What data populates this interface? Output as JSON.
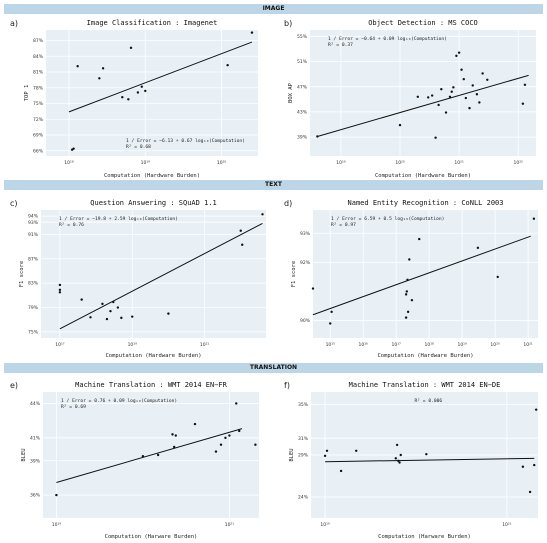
{
  "sections": [
    "IMAGE",
    "TEXT",
    "TRANSLATION"
  ],
  "colors": {
    "band": "#bcd6e8",
    "plot_bg": "#e8f0f6",
    "grid": "#ffffff",
    "line": "#111111",
    "point": "#111111"
  },
  "chart_data": [
    {
      "panel": "a)",
      "type": "scatter",
      "title": "Image Classification : Imagenet",
      "xlabel": "Computation (Hardware Burden)",
      "ylabel": "TOP 1",
      "x_scale": "log",
      "xlim": [
        5e+17,
        3e+20
      ],
      "ylim": [
        65,
        89
      ],
      "x_ticks": [
        1e+18,
        1e+19,
        1e+20
      ],
      "x_tick_labels": [
        "10¹⁸",
        "10¹⁹",
        "10²⁰"
      ],
      "y_ticks": [
        66,
        69,
        72,
        75,
        78,
        81,
        84,
        87
      ],
      "y_tick_labels": [
        "66%",
        "69%",
        "72%",
        "75%",
        "78%",
        "81%",
        "84%",
        "87%"
      ],
      "annotation": [
        "1 / Error = −6.13 + 0.67 log₁₀(Computation)",
        "R² = 0.68"
      ],
      "fit": {
        "x": [
          1e+18,
          2.5e+20
        ],
        "y": [
          73.4,
          86.7
        ]
      },
      "points": {
        "x": [
          1.1e+18,
          1.15e+18,
          1.3e+18,
          2.5e+18,
          2.8e+18,
          5e+18,
          6e+18,
          6.5e+18,
          8e+18,
          9e+18,
          1e+19,
          1.2e+20,
          2.5e+20
        ],
        "y": [
          66.2,
          66.4,
          82.1,
          79.8,
          81.7,
          76.2,
          75.8,
          85.6,
          77.1,
          78.2,
          77.4,
          82.3,
          88.5
        ]
      }
    },
    {
      "panel": "b)",
      "type": "scatter",
      "title": "Object Detection : MS COCO",
      "xlabel": "Computation (Hardware Burden)",
      "ylabel": "BOX AP",
      "x_scale": "log",
      "xlim": [
        3e+18,
        2e+22
      ],
      "ylim": [
        36,
        56
      ],
      "x_ticks": [
        1e+19,
        1e+20,
        1e+21,
        1e+22
      ],
      "x_tick_labels": [
        "10¹⁹",
        "10²⁰",
        "10²¹",
        "10²²"
      ],
      "y_ticks": [
        39,
        43,
        47,
        51,
        55
      ],
      "y_tick_labels": [
        "39%",
        "43%",
        "47%",
        "51%",
        "55%"
      ],
      "annotation": [
        "1 / Error = −0.64 + 0.09 log₁₀(Computation)",
        "R² = 0.37"
      ],
      "fit": {
        "x": [
          4e+18,
          1.5e+22
        ],
        "y": [
          39.1,
          48.8
        ]
      },
      "points": {
        "x": [
          4e+18,
          1e+20,
          2e+20,
          3e+20,
          3.5e+20,
          4e+20,
          4.5e+20,
          5e+20,
          6e+20,
          7e+20,
          7.5e+20,
          8e+20,
          9e+20,
          1e+21,
          1.1e+21,
          1.2e+21,
          1.3e+21,
          1.5e+21,
          1.7e+21,
          2e+21,
          2.2e+21,
          2.5e+21,
          3e+21,
          1.2e+22,
          1.3e+22
        ],
        "y": [
          39.1,
          40.9,
          45.4,
          45.3,
          45.6,
          38.9,
          44.1,
          46.6,
          42.9,
          45.4,
          46.2,
          46.9,
          51.9,
          52.4,
          49.7,
          48.2,
          45.2,
          43.6,
          47.2,
          45.8,
          44.5,
          49.1,
          48.1,
          44.3,
          47.3
        ]
      }
    },
    {
      "panel": "c)",
      "type": "scatter",
      "title": "Question Answering : SQuAD 1.1",
      "xlabel": "Computation (Hardware Burden)",
      "ylabel": "F1 score",
      "x_scale": "log",
      "xlim": [
        3e+16,
        5e+22
      ],
      "ylim": [
        74,
        95
      ],
      "x_ticks": [
        1e+17,
        1e+19,
        1e+21
      ],
      "x_tick_labels": [
        "10¹⁷",
        "10¹⁹",
        "10²¹"
      ],
      "y_ticks": [
        75,
        79,
        83,
        87,
        91,
        93,
        94
      ],
      "y_tick_labels": [
        "75%",
        "79%",
        "83%",
        "87%",
        "91%",
        "93%",
        "94%"
      ],
      "annotation": [
        "1 / Error = −19.8 + 2.59 log₁₀(Computation)",
        "R² = 0.76"
      ],
      "fit": {
        "x": [
          1e+17,
          4e+22
        ],
        "y": [
          75.5,
          92.8
        ]
      },
      "points": {
        "x": [
          1e+17,
          1e+17,
          1e+17,
          4e+17,
          7e+17,
          1.5e+18,
          2e+18,
          2.5e+18,
          3e+18,
          4e+18,
          5e+18,
          1e+19,
          1e+20,
          1e+22,
          1.1e+22,
          4e+22
        ],
        "y": [
          81.5,
          81.9,
          82.7,
          80.3,
          77.4,
          79.6,
          77.1,
          78.4,
          79.9,
          79.0,
          77.3,
          77.5,
          78.0,
          91.6,
          89.3,
          94.3
        ]
      }
    },
    {
      "panel": "d)",
      "type": "scatter",
      "title": "Named Entity Recognition : CoNLL 2003",
      "xlabel": "Computation (Hardware Burden)",
      "ylabel": "F1 score",
      "x_scale": "log",
      "xlim": [
        300000000000000.0,
        2e+21
      ],
      "ylim": [
        89.4,
        93.8
      ],
      "x_ticks": [
        1000000000000000.0,
        1e+16,
        1e+17,
        1e+18,
        1e+19,
        1e+20,
        1e+21
      ],
      "x_tick_labels": [
        "10¹⁵",
        "10¹⁶",
        "10¹⁷",
        "10¹⁸",
        "10¹⁹",
        "10²⁰",
        "10²¹"
      ],
      "y_ticks": [
        90,
        92,
        93
      ],
      "y_tick_labels": [
        "90%",
        "92%",
        "93%"
      ],
      "annotation": [
        "1 / Error = 6.59 + 0.5 log₁₀(Computation)",
        "R² = 0.97"
      ],
      "fit": {
        "x": [
          300000000000000.0,
          1.2e+21
        ],
        "y": [
          90.2,
          92.9
        ]
      },
      "points": {
        "x": [
          300000000000000.0,
          1000000000000000.0,
          1100000000000000.0,
          2e+17,
          2e+17,
          2.1e+17,
          2.2e+17,
          2.3e+17,
          2.5e+17,
          3e+17,
          5e+17,
          3e+19,
          1.2e+20,
          1.5e+21
        ],
        "y": [
          91.1,
          89.9,
          90.3,
          90.1,
          90.9,
          91.0,
          91.4,
          90.3,
          92.1,
          90.7,
          92.8,
          92.5,
          91.5,
          93.5
        ]
      }
    },
    {
      "panel": "e)",
      "type": "scatter",
      "title": "Machine Translation : WMT 2014 EN−FR",
      "xlabel": "Computation (Harware Burden)",
      "ylabel": "BLEU",
      "x_scale": "log",
      "xlim": [
        7e+18,
        2.2e+21
      ],
      "ylim": [
        34,
        45
      ],
      "x_ticks": [
        1e+19,
        1e+21
      ],
      "x_tick_labels": [
        "10¹⁹",
        "10²¹"
      ],
      "y_ticks": [
        36,
        39,
        41,
        44
      ],
      "y_tick_labels": [
        "36%",
        "39%",
        "41%",
        "44%"
      ],
      "annotation": [
        "1 / Error = 0.76 + 0.09 log₁₀(Computation)",
        "R² = 0.69"
      ],
      "fit": {
        "x": [
          1e+19,
          1.4e+21
        ],
        "y": [
          37.1,
          41.8
        ]
      },
      "points": {
        "x": [
          1e+19,
          1e+20,
          1.5e+20,
          2.2e+20,
          2.3e+20,
          2.4e+20,
          4e+20,
          7e+20,
          8e+20,
          9e+20,
          1e+21,
          1.2e+21,
          1.3e+21,
          2e+21
        ],
        "y": [
          36.0,
          39.4,
          39.5,
          41.3,
          40.2,
          41.2,
          42.2,
          39.8,
          40.4,
          41.0,
          41.2,
          44.0,
          41.6,
          40.4
        ]
      }
    },
    {
      "panel": "f)",
      "type": "scatter",
      "title": "Machine Translation : WMT 2014 EN−DE",
      "xlabel": "Computation (Harware Burden)",
      "ylabel": "BLEU",
      "x_scale": "log",
      "xlim": [
        7e+18,
        2.2e+21
      ],
      "ylim": [
        21.5,
        36.5
      ],
      "x_ticks": [
        1e+19,
        1e+21
      ],
      "x_tick_labels": [
        "10¹⁹",
        "10²¹"
      ],
      "y_ticks": [
        24,
        29,
        31,
        35
      ],
      "y_tick_labels": [
        "24%",
        "29%",
        "31%",
        "35%"
      ],
      "annotation": [
        "R² = 0.006"
      ],
      "fit": {
        "x": [
          1e+19,
          2e+21
        ],
        "y": [
          28.2,
          28.6
        ]
      },
      "points": {
        "x": [
          1e+19,
          1.05e+19,
          1.5e+19,
          2.2e+19,
          6e+19,
          6.2e+19,
          6.4e+19,
          6.6e+19,
          6.8e+19,
          1.3e+20,
          1.5e+21,
          1.8e+21,
          2e+21,
          2.1e+21
        ],
        "y": [
          28.9,
          29.5,
          27.1,
          29.5,
          28.6,
          30.2,
          28.3,
          28.1,
          29.0,
          29.1,
          27.6,
          24.6,
          27.8,
          34.4
        ]
      }
    }
  ]
}
